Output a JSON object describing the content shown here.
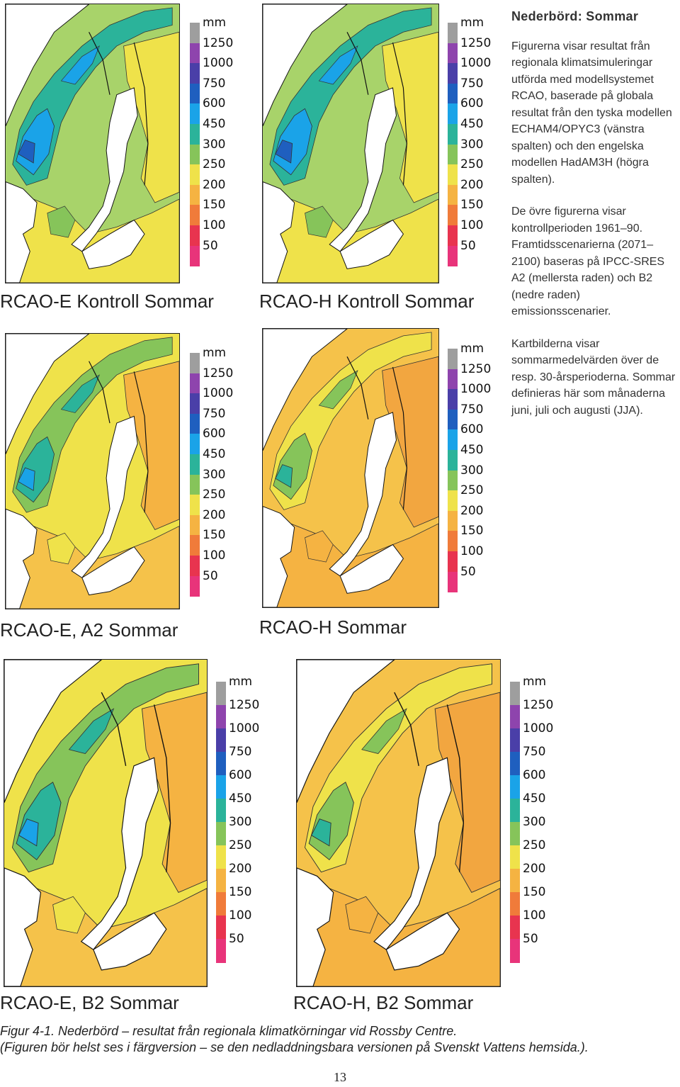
{
  "legend": {
    "unit": "mm",
    "levels": [
      {
        "label": "1250",
        "color": "#9e9e9e"
      },
      {
        "label": "1000",
        "color": "#8e44ad"
      },
      {
        "label": "750",
        "color": "#4a3fa8"
      },
      {
        "label": "600",
        "color": "#1f5fbf"
      },
      {
        "label": "450",
        "color": "#1aa3e8"
      },
      {
        "label": "300",
        "color": "#2bb39a"
      },
      {
        "label": "250",
        "color": "#86c45a"
      },
      {
        "label": "200",
        "color": "#efe24a"
      },
      {
        "label": "150",
        "color": "#f5b342"
      },
      {
        "label": "100",
        "color": "#f07b3a"
      },
      {
        "label": "50",
        "color": "#e8344f"
      },
      {
        "label": "",
        "color": "#e8347a"
      }
    ]
  },
  "maps": [
    {
      "id": "e-kontroll",
      "label": "RCAO-E Kontroll Sommar",
      "palette": "wet"
    },
    {
      "id": "h-kontroll",
      "label": "RCAO-H Kontroll Sommar",
      "palette": "wet"
    },
    {
      "id": "e-a2",
      "label": "RCAO-E, A2 Sommar",
      "palette": "mid"
    },
    {
      "id": "h-a2",
      "label": "RCAO-H Sommar",
      "palette": "dry"
    },
    {
      "id": "e-b2",
      "label": "RCAO-E, B2 Sommar",
      "palette": "mid"
    },
    {
      "id": "h-b2",
      "label": "RCAO-H, B2 Sommar",
      "palette": "dry"
    }
  ],
  "side": {
    "heading": "Nederbörd: Sommar",
    "p1": "Figurerna visar resultat från regionala klimatsimuleringar utförda med modellsystemet RCAO, baserade på globala resultat från den tyska modellen ECHAM4/OPYC3 (vänstra spalten) och den engelska modellen HadAM3H (högra spalten).",
    "p2": "De övre figurerna visar kontrollperioden 1961–90. Framtidsscenarierna (2071–2100) baseras på IPCC-SRES A2 (mellersta raden) och B2 (nedre raden) emissionsscenarier.",
    "p3": "Kartbilderna visar sommarmedelvärden över de resp. 30-årsperioderna. Sommar definieras här som månaderna juni, juli och augusti (JJA)."
  },
  "caption": {
    "line1": "Figur 4-1. Nederbörd – resultat från regionala klimatkörningar vid Rossby Centre.",
    "line2": "(Figuren bör helst ses i färgversion – se den nedladdningsbara versionen på Svenskt Vattens hemsida.)."
  },
  "page_number": "13"
}
